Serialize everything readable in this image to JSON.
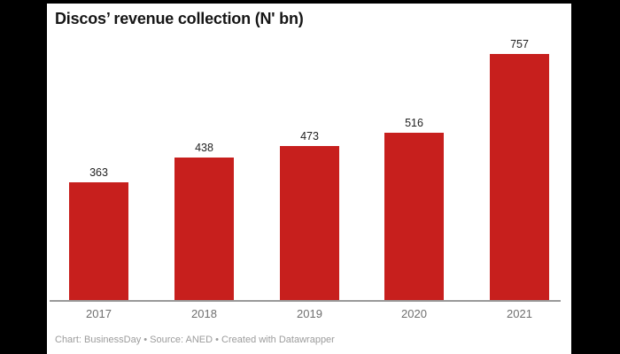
{
  "window": {
    "outer_background": "#000000",
    "card_background": "#ffffff"
  },
  "header": {
    "title": "Discos’ revenue collection (N' bn)"
  },
  "chart_data": {
    "type": "bar",
    "categories": [
      "2017",
      "2018",
      "2019",
      "2020",
      "2021"
    ],
    "values": [
      363,
      438,
      473,
      516,
      757
    ],
    "title": "Discos’ revenue collection (N' bn)",
    "xlabel": "",
    "ylabel": "",
    "ylim": [
      0,
      757
    ],
    "bar_color": "#c71f1d",
    "value_label_color": "#222222",
    "tick_label_color": "#6f6f6f",
    "axis_line_color": "#999999",
    "grid": false,
    "legend": "none",
    "value_labels_shown": true
  },
  "footer": {
    "credit": "Chart: BusinessDay • Source: ANED • Created with Datawrapper"
  }
}
